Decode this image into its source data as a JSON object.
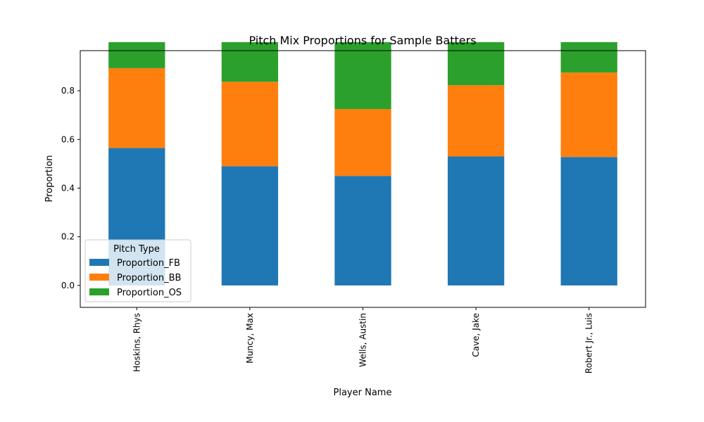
{
  "chart_data": {
    "type": "bar",
    "stacked": true,
    "title": "Pitch Mix Proportions for Sample Batters",
    "xlabel": "Player Name",
    "ylabel": "Proportion",
    "categories": [
      "Hoskins, Rhys",
      "Muncy, Max",
      "Wells, Austin",
      "Cave, Jake",
      "Robert Jr., Luis"
    ],
    "series": [
      {
        "name": "Proportion_FB",
        "color": "#1f77b4",
        "values": [
          0.565,
          0.49,
          0.45,
          0.53,
          0.528
        ]
      },
      {
        "name": "Proportion_BB",
        "color": "#ff7f0e",
        "values": [
          0.328,
          0.347,
          0.275,
          0.293,
          0.347
        ]
      },
      {
        "name": "Proportion_OS",
        "color": "#2ca02c",
        "values": [
          0.107,
          0.163,
          0.275,
          0.177,
          0.125
        ]
      }
    ],
    "ylim": [
      -0.09,
      0.965
    ],
    "yticks": [
      "0.0",
      "0.2",
      "0.4",
      "0.6",
      "0.8"
    ],
    "grid": false,
    "legend": {
      "title": "Pitch Type",
      "placement": "lower-left"
    }
  }
}
